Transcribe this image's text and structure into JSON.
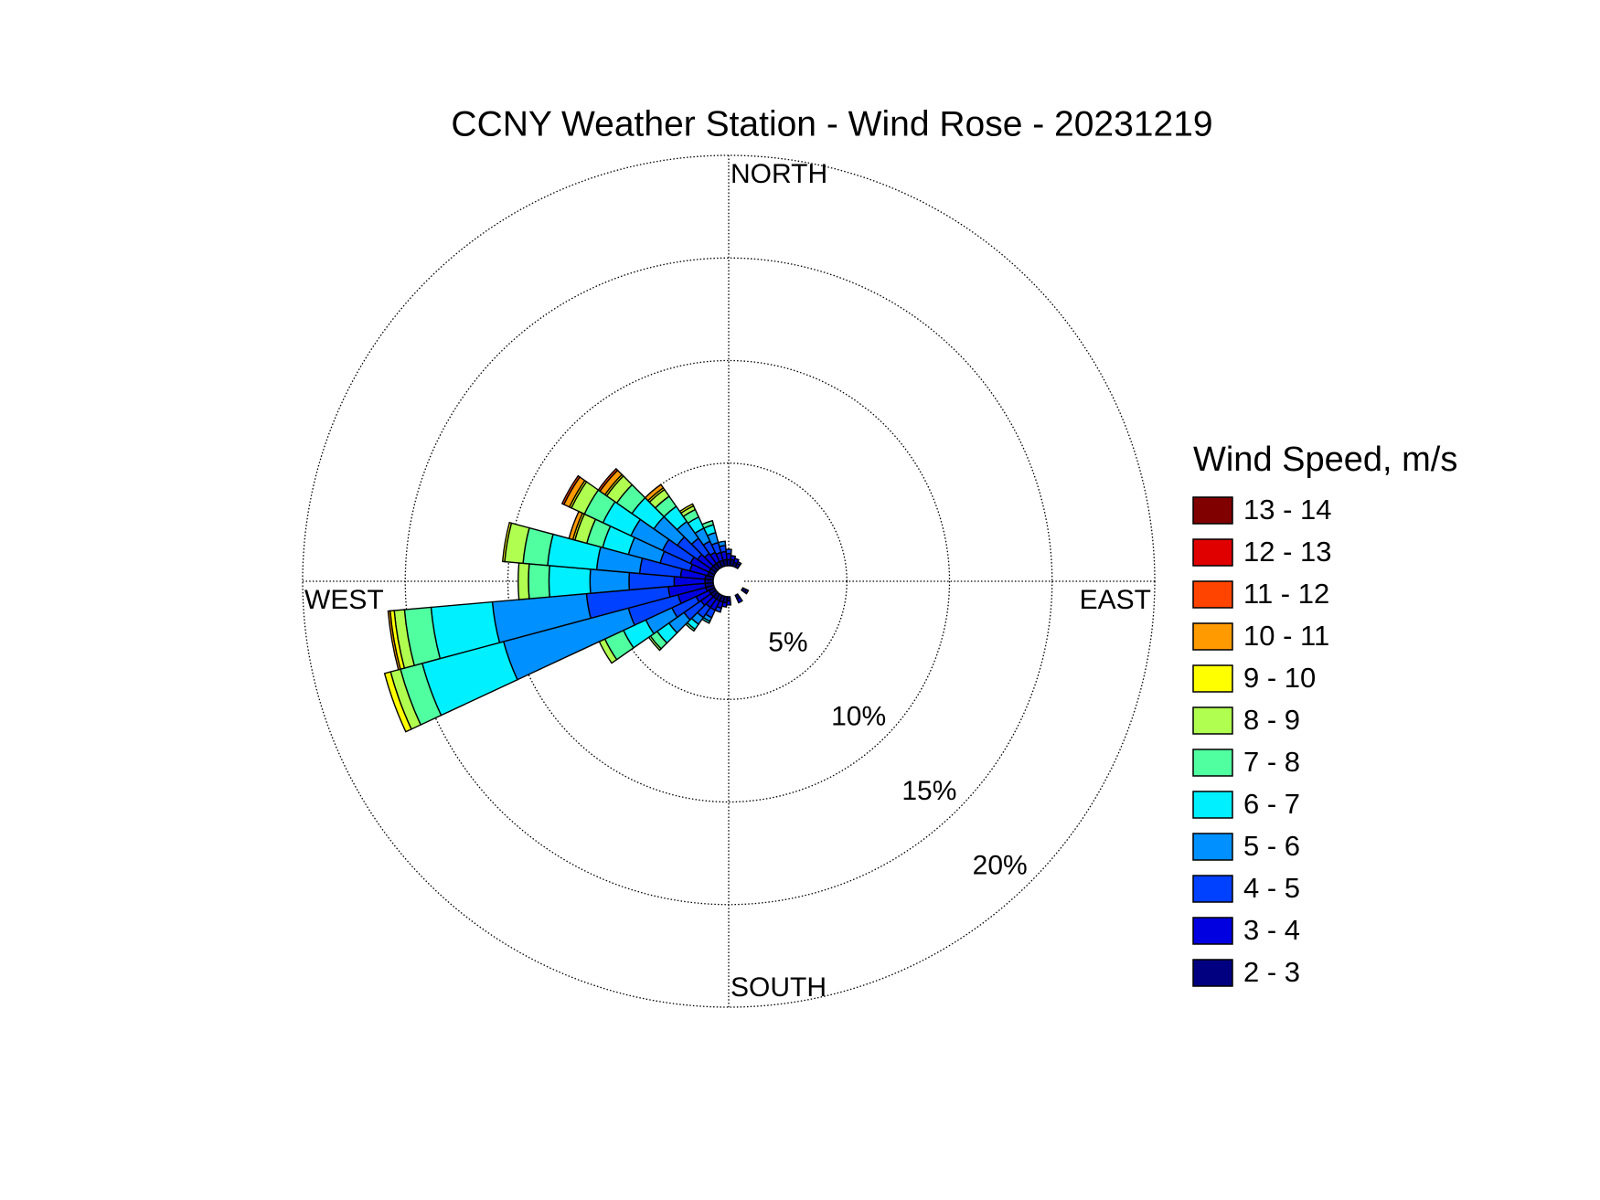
{
  "chart_data": {
    "type": "windrose",
    "title": "CCNY Weather Station - Wind Rose - 20231219",
    "direction_labels": [
      "NORTH",
      "EAST",
      "SOUTH",
      "WEST"
    ],
    "legend_title": "Wind Speed, m/s",
    "directions": [
      0,
      10,
      20,
      30,
      120,
      150,
      180,
      190,
      200,
      210,
      220,
      230,
      240,
      250,
      260,
      270,
      280,
      290,
      300,
      310,
      320,
      330,
      340,
      350
    ],
    "sector_width": 10,
    "rlim": [
      0,
      20
    ],
    "rticks": [
      {
        "value": 5,
        "label": "5%"
      },
      {
        "value": 10,
        "label": "10%"
      },
      {
        "value": 15,
        "label": "15%"
      },
      {
        "value": 20,
        "label": "20%"
      }
    ],
    "grid": true,
    "series": [
      {
        "name": "2 - 3",
        "color": "#000080",
        "values": [
          0.3,
          0.3,
          0.2,
          0.2,
          0.2,
          0.2,
          0.2,
          0.3,
          0.3,
          0.3,
          0.3,
          0.3,
          0.3,
          0.4,
          0.4,
          0.4,
          0.4,
          0.3,
          0.3,
          0.3,
          0.3,
          0.3,
          0.3,
          0.3
        ]
      },
      {
        "name": "3 - 4",
        "color": "#0000e0",
        "values": [
          0.3,
          0.2,
          0.2,
          0.1,
          0.1,
          0.2,
          0.2,
          0.2,
          0.3,
          0.5,
          0.5,
          0.6,
          0.7,
          1.4,
          1.8,
          1.5,
          1.2,
          0.9,
          1.0,
          0.8,
          0.6,
          0.5,
          0.4,
          0.4
        ]
      },
      {
        "name": "4 - 5",
        "color": "#0040ff",
        "values": [
          0.2,
          0,
          0,
          0,
          0,
          0,
          0,
          0,
          0.2,
          0.4,
          0.6,
          1.0,
          1.3,
          2.5,
          4.0,
          2.2,
          2.0,
          1.5,
          1.5,
          1.2,
          0.9,
          0.6,
          0.5,
          0.3
        ]
      },
      {
        "name": "5 - 6",
        "color": "#0090ff",
        "values": [
          0,
          0,
          0,
          0,
          0,
          0,
          0,
          0,
          0,
          0.2,
          0.4,
          0.9,
          1.4,
          6.3,
          4.6,
          1.9,
          2.1,
          1.6,
          1.7,
          1.4,
          1.0,
          0.7,
          0.5,
          0.2
        ]
      },
      {
        "name": "6 - 7",
        "color": "#00f0ff",
        "values": [
          0,
          0,
          0,
          0,
          0,
          0,
          0,
          0,
          0,
          0.1,
          0.3,
          0.7,
          1.2,
          4.1,
          3.0,
          2.0,
          2.4,
          1.3,
          1.5,
          1.3,
          0.9,
          0.6,
          0.4,
          0
        ]
      },
      {
        "name": "7 - 8",
        "color": "#50ffa0",
        "values": [
          0,
          0,
          0,
          0,
          0,
          0,
          0,
          0,
          0,
          0,
          0.1,
          0.4,
          1.0,
          1.1,
          1.3,
          1.0,
          1.2,
          0.8,
          1.0,
          0.9,
          0.6,
          0.4,
          0.2,
          0
        ]
      },
      {
        "name": "8 - 9",
        "color": "#b0ff50",
        "values": [
          0,
          0,
          0,
          0,
          0,
          0,
          0,
          0,
          0,
          0,
          0,
          0.1,
          0.3,
          0.5,
          0.5,
          0.5,
          0.9,
          0.6,
          0.7,
          0.6,
          0.4,
          0.2,
          0,
          0
        ]
      },
      {
        "name": "9 - 10",
        "color": "#ffff00",
        "values": [
          0,
          0,
          0,
          0,
          0,
          0,
          0,
          0,
          0,
          0,
          0,
          0,
          0,
          0.3,
          0.2,
          0,
          0.1,
          0.1,
          0.1,
          0.1,
          0.1,
          0.1,
          0,
          0
        ]
      },
      {
        "name": "10 - 11",
        "color": "#ff9a00",
        "values": [
          0,
          0,
          0,
          0,
          0,
          0,
          0,
          0,
          0,
          0,
          0,
          0,
          0,
          0,
          0.1,
          0,
          0,
          0.2,
          0.3,
          0.3,
          0.2,
          0,
          0,
          0
        ]
      },
      {
        "name": "11 - 12",
        "color": "#ff4400",
        "values": [
          0,
          0,
          0,
          0,
          0,
          0,
          0,
          0,
          0,
          0,
          0,
          0,
          0,
          0,
          0,
          0,
          0,
          0,
          0.1,
          0.1,
          0,
          0,
          0,
          0
        ]
      },
      {
        "name": "12 - 13",
        "color": "#e00000",
        "values": [
          0,
          0,
          0,
          0,
          0,
          0,
          0,
          0,
          0,
          0,
          0,
          0,
          0,
          0,
          0,
          0,
          0,
          0,
          0,
          0,
          0,
          0,
          0,
          0
        ]
      },
      {
        "name": "13 - 14",
        "color": "#800000",
        "values": [
          0,
          0,
          0,
          0,
          0,
          0,
          0,
          0,
          0,
          0,
          0,
          0,
          0,
          0,
          0,
          0,
          0,
          0,
          0,
          0,
          0,
          0,
          0,
          0
        ]
      }
    ]
  }
}
